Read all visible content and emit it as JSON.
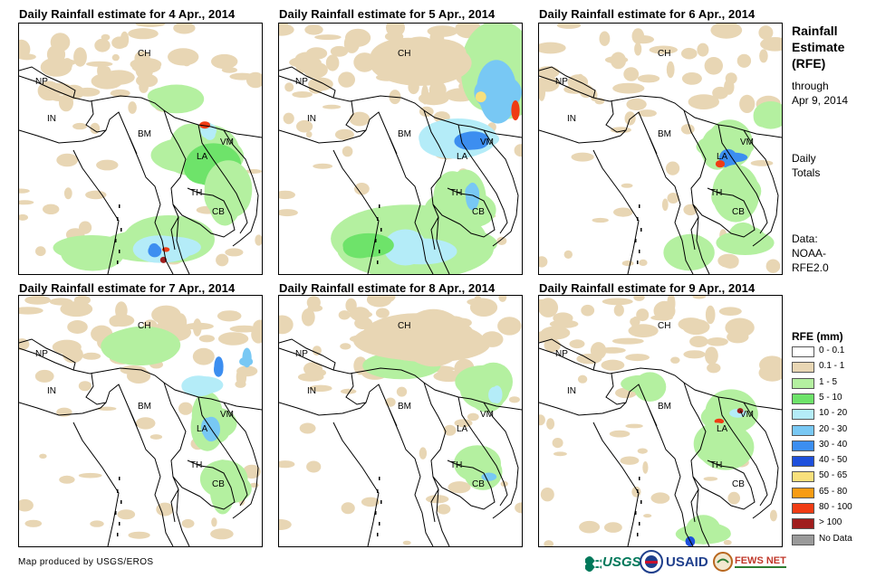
{
  "panels": [
    {
      "title": "Daily Rainfall estimate for 4 Apr., 2014"
    },
    {
      "title": "Daily Rainfall estimate for 5 Apr., 2014"
    },
    {
      "title": "Daily Rainfall estimate for 6 Apr., 2014"
    },
    {
      "title": "Daily Rainfall estimate for 7 Apr., 2014"
    },
    {
      "title": "Daily Rainfall estimate for 8 Apr., 2014"
    },
    {
      "title": "Daily Rainfall estimate for 9 Apr., 2014"
    }
  ],
  "country_labels": [
    "CH",
    "NP",
    "IN",
    "BM",
    "LA",
    "VM",
    "TH",
    "CB"
  ],
  "side": {
    "title_lines": [
      "Rainfall",
      "Estimate",
      "(RFE)"
    ],
    "through": "through",
    "date": "Apr 9, 2014",
    "daily": "Daily",
    "totals": "Totals",
    "data_label": "Data:",
    "data_src1": "NOAA-",
    "data_src2": "RFE2.0"
  },
  "legend": {
    "title": "RFE (mm)",
    "items": [
      {
        "label": "0 - 0.1",
        "color": "#ffffff"
      },
      {
        "label": "0.1 - 1",
        "color": "#e8d6b4"
      },
      {
        "label": "1 - 5",
        "color": "#b4f0a0"
      },
      {
        "label": "5 - 10",
        "color": "#6ee36a"
      },
      {
        "label": "10 - 20",
        "color": "#b4ecf8"
      },
      {
        "label": "20 - 30",
        "color": "#78c8f4"
      },
      {
        "label": "30 - 40",
        "color": "#3c8ef0"
      },
      {
        "label": "40 - 50",
        "color": "#1e50dc"
      },
      {
        "label": "50 - 65",
        "color": "#f8e07c"
      },
      {
        "label": "65 - 80",
        "color": "#f89c14"
      },
      {
        "label": "80 - 100",
        "color": "#f03c14"
      },
      {
        "label": "> 100",
        "color": "#a01e1e"
      },
      {
        "label": "No Data",
        "color": "#9a9a9a"
      }
    ]
  },
  "credit": "Map produced by USGS/EROS",
  "logos": {
    "usgs": "USGS",
    "usaid": "USAID",
    "fews": "FEWS NET"
  }
}
